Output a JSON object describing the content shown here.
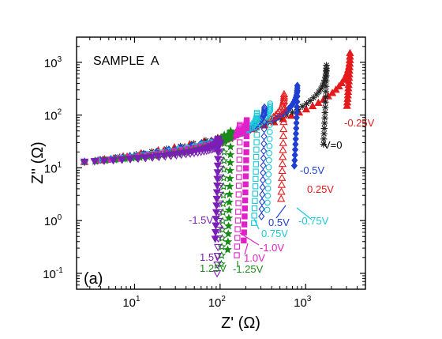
{
  "chart_data": {
    "type": "scatter",
    "title": "",
    "sample_label": "SAMPLE  A",
    "panel_label": "(a)",
    "xlabel": "Z' (Ω)",
    "ylabel": "Z'' (Ω)",
    "x_scale": "log",
    "y_scale": "log",
    "xlim": [
      2.1,
      5000
    ],
    "ylim": [
      0.05,
      3000
    ],
    "x_ticks": [
      {
        "value": 10,
        "base": "10",
        "exp": "1"
      },
      {
        "value": 100,
        "base": "10",
        "exp": "2"
      },
      {
        "value": 1000,
        "base": "10",
        "exp": "3"
      }
    ],
    "y_ticks": [
      {
        "value": 0.1,
        "base": "10",
        "exp": "-1"
      },
      {
        "value": 1,
        "base": "10",
        "exp": "0"
      },
      {
        "value": 10,
        "base": "10",
        "exp": "1"
      },
      {
        "value": 100,
        "base": "10",
        "exp": "2"
      },
      {
        "value": 1000,
        "base": "10",
        "exp": "3"
      }
    ],
    "grid": false,
    "series": [
      {
        "name": "-0.25V",
        "color": "#e41a1c",
        "marker": "triangle-up",
        "filled": true,
        "x_tail": 3300,
        "y_peak": 1500,
        "y_end": 150
      },
      {
        "name": "V=0",
        "color": "#222222",
        "marker": "asterisk",
        "filled": false,
        "x_tail": 1750,
        "y_peak": 880,
        "y_end": 28
      },
      {
        "name": "-0.5V",
        "color": "#1f3fd0",
        "marker": "diamond",
        "filled": true,
        "x_tail": 800,
        "y_peak": 360,
        "y_end": 11
      },
      {
        "name": "0.25V",
        "color": "#e41a1c",
        "marker": "triangle-up",
        "filled": false,
        "x_tail": 560,
        "y_peak": 250,
        "y_end": 2.6
      },
      {
        "name": "-0.75V",
        "color": "#1ac8d8",
        "marker": "circle",
        "filled": false,
        "x_tail": 385,
        "y_peak": 165,
        "y_end": 1.6
      },
      {
        "name": "0.5V",
        "color": "#1f3fd0",
        "marker": "diamond",
        "filled": false,
        "x_tail": 330,
        "y_peak": 140,
        "y_end": 1.2
      },
      {
        "name": "0.75V",
        "color": "#1ac8d8",
        "marker": "square",
        "filled": false,
        "x_tail": 270,
        "y_peak": 110,
        "y_end": 0.9
      },
      {
        "name": "-1.0V",
        "color": "#e020c8",
        "marker": "square",
        "filled": true,
        "x_tail": 205,
        "y_peak": 80,
        "y_end": 0.42
      },
      {
        "name": "1.0V",
        "color": "#e020c8",
        "marker": "square",
        "filled": false,
        "x_tail": 170,
        "y_peak": 65,
        "y_end": 0.22
      },
      {
        "name": "-1.25V",
        "color": "#1a8a1a",
        "marker": "star",
        "filled": true,
        "x_tail": 133,
        "y_peak": 50,
        "y_end": 0.28
      },
      {
        "name": "1.25V",
        "color": "#1a8a1a",
        "marker": "star",
        "filled": false,
        "x_tail": 112,
        "y_peak": 42,
        "y_end": 0.15
      },
      {
        "name": "-1.5V",
        "color": "#7a1fb5",
        "marker": "triangle-down",
        "filled": true,
        "x_tail": 95,
        "y_peak": 35,
        "y_end": 0.45
      },
      {
        "name": "1.5V",
        "color": "#7a1fb5",
        "marker": "triangle-down",
        "filled": false,
        "x_tail": 100,
        "y_peak": 30,
        "y_end": 0.1
      }
    ],
    "annotations": [
      {
        "text": "-0.25V",
        "color": "#e41a1c"
      },
      {
        "text": "V=0",
        "color": "#000000"
      },
      {
        "text": "-0.5V",
        "color": "#1f3fd0"
      },
      {
        "text": "0.25V",
        "color": "#e41a1c"
      },
      {
        "text": "-0.75V",
        "color": "#1ac8d8"
      },
      {
        "text": "0.5V",
        "color": "#1f3fd0"
      },
      {
        "text": "0.75V",
        "color": "#1ac8d8"
      },
      {
        "text": "-1.0V",
        "color": "#e020c8"
      },
      {
        "text": "1.0V",
        "color": "#e020c8"
      },
      {
        "text": "-1.25V",
        "color": "#1a8a1a"
      },
      {
        "text": "1.25V",
        "color": "#1a8a1a"
      },
      {
        "text": "-1.5V",
        "color": "#7a1fb5"
      },
      {
        "text": "1.5V",
        "color": "#7a1fb5"
      }
    ]
  }
}
